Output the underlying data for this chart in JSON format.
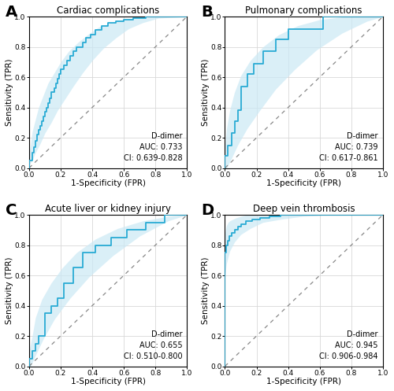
{
  "panels": [
    {
      "label": "A",
      "title": "Cardiac complications",
      "auc": "0.733",
      "ci": "0.639-0.828",
      "roc_fpr": [
        0.0,
        0.0,
        0.02,
        0.02,
        0.03,
        0.03,
        0.04,
        0.04,
        0.05,
        0.05,
        0.06,
        0.06,
        0.07,
        0.07,
        0.08,
        0.08,
        0.09,
        0.09,
        0.1,
        0.1,
        0.11,
        0.11,
        0.12,
        0.12,
        0.13,
        0.13,
        0.14,
        0.14,
        0.16,
        0.16,
        0.17,
        0.17,
        0.18,
        0.18,
        0.19,
        0.19,
        0.2,
        0.2,
        0.22,
        0.22,
        0.24,
        0.24,
        0.26,
        0.26,
        0.28,
        0.28,
        0.3,
        0.3,
        0.34,
        0.34,
        0.36,
        0.36,
        0.39,
        0.39,
        0.42,
        0.42,
        0.46,
        0.46,
        0.5,
        0.5,
        0.55,
        0.55,
        0.6,
        0.6,
        0.66,
        0.66,
        0.74,
        0.74,
        0.82,
        0.82,
        1.0
      ],
      "roc_tpr": [
        0.0,
        0.05,
        0.05,
        0.1,
        0.1,
        0.14,
        0.14,
        0.18,
        0.18,
        0.22,
        0.22,
        0.25,
        0.25,
        0.28,
        0.28,
        0.31,
        0.31,
        0.34,
        0.34,
        0.37,
        0.37,
        0.4,
        0.4,
        0.43,
        0.43,
        0.46,
        0.46,
        0.5,
        0.5,
        0.53,
        0.53,
        0.56,
        0.56,
        0.59,
        0.59,
        0.62,
        0.62,
        0.65,
        0.65,
        0.68,
        0.68,
        0.71,
        0.71,
        0.74,
        0.74,
        0.77,
        0.77,
        0.8,
        0.8,
        0.83,
        0.83,
        0.86,
        0.86,
        0.88,
        0.88,
        0.91,
        0.91,
        0.94,
        0.94,
        0.96,
        0.96,
        0.97,
        0.97,
        0.98,
        0.98,
        0.99,
        0.99,
        1.0,
        1.0,
        1.0,
        1.0
      ],
      "ci_lo_fpr": [
        0.0,
        0.0,
        0.02,
        0.04,
        0.07,
        0.1,
        0.14,
        0.18,
        0.23,
        0.28,
        0.34,
        0.4,
        0.47,
        0.55,
        0.63,
        0.72,
        0.82,
        1.0
      ],
      "ci_lo_tpr": [
        0.0,
        0.02,
        0.05,
        0.1,
        0.16,
        0.23,
        0.3,
        0.38,
        0.46,
        0.54,
        0.63,
        0.71,
        0.79,
        0.86,
        0.92,
        0.96,
        0.99,
        1.0
      ],
      "ci_hi_fpr": [
        0.0,
        0.0,
        0.01,
        0.02,
        0.04,
        0.06,
        0.09,
        0.12,
        0.16,
        0.2,
        0.25,
        0.31,
        0.37,
        0.44,
        0.52,
        0.6,
        0.69,
        0.79,
        1.0
      ],
      "ci_hi_tpr": [
        0.0,
        0.09,
        0.16,
        0.24,
        0.32,
        0.4,
        0.48,
        0.56,
        0.63,
        0.7,
        0.77,
        0.83,
        0.88,
        0.93,
        0.96,
        0.98,
        0.99,
        1.0,
        1.0
      ]
    },
    {
      "label": "B",
      "title": "Pulmonary complications",
      "auc": "0.739",
      "ci": "0.617-0.861",
      "roc_fpr": [
        0.0,
        0.0,
        0.02,
        0.02,
        0.04,
        0.04,
        0.06,
        0.06,
        0.08,
        0.08,
        0.1,
        0.1,
        0.14,
        0.14,
        0.18,
        0.18,
        0.24,
        0.24,
        0.32,
        0.32,
        0.4,
        0.4,
        0.5,
        0.5,
        0.62,
        0.62,
        0.76,
        0.76,
        1.0
      ],
      "roc_tpr": [
        0.0,
        0.08,
        0.08,
        0.15,
        0.15,
        0.23,
        0.23,
        0.31,
        0.31,
        0.38,
        0.38,
        0.54,
        0.54,
        0.62,
        0.62,
        0.69,
        0.69,
        0.77,
        0.77,
        0.85,
        0.85,
        0.92,
        0.92,
        0.92,
        0.92,
        1.0,
        1.0,
        1.0,
        1.0
      ],
      "ci_lo_fpr": [
        0.0,
        0.01,
        0.04,
        0.08,
        0.14,
        0.22,
        0.32,
        0.44,
        0.58,
        0.74,
        0.9,
        1.0
      ],
      "ci_lo_tpr": [
        0.0,
        0.0,
        0.06,
        0.15,
        0.26,
        0.38,
        0.52,
        0.65,
        0.78,
        0.89,
        0.97,
        1.0
      ],
      "ci_hi_fpr": [
        0.0,
        0.0,
        0.01,
        0.03,
        0.06,
        0.1,
        0.16,
        0.24,
        0.34,
        0.46,
        0.6,
        0.76,
        1.0
      ],
      "ci_hi_tpr": [
        0.0,
        0.16,
        0.26,
        0.38,
        0.5,
        0.61,
        0.71,
        0.8,
        0.88,
        0.94,
        0.98,
        1.0,
        1.0
      ]
    },
    {
      "label": "C",
      "title": "Acute liver or kidney injury",
      "auc": "0.655",
      "ci": "0.510-0.800",
      "roc_fpr": [
        0.0,
        0.0,
        0.02,
        0.02,
        0.04,
        0.04,
        0.06,
        0.06,
        0.1,
        0.1,
        0.14,
        0.14,
        0.18,
        0.18,
        0.22,
        0.22,
        0.28,
        0.28,
        0.34,
        0.34,
        0.42,
        0.42,
        0.52,
        0.52,
        0.62,
        0.62,
        0.74,
        0.74,
        0.86,
        0.86,
        1.0
      ],
      "roc_tpr": [
        0.0,
        0.05,
        0.05,
        0.1,
        0.1,
        0.15,
        0.15,
        0.2,
        0.2,
        0.35,
        0.35,
        0.4,
        0.4,
        0.45,
        0.45,
        0.55,
        0.55,
        0.65,
        0.65,
        0.75,
        0.75,
        0.8,
        0.8,
        0.85,
        0.85,
        0.9,
        0.9,
        0.95,
        0.95,
        1.0,
        1.0
      ],
      "ci_lo_fpr": [
        0.0,
        0.01,
        0.04,
        0.09,
        0.16,
        0.26,
        0.38,
        0.53,
        0.7,
        0.88,
        1.0
      ],
      "ci_lo_tpr": [
        0.0,
        0.0,
        0.07,
        0.18,
        0.31,
        0.45,
        0.59,
        0.73,
        0.86,
        0.96,
        1.0
      ],
      "ci_hi_fpr": [
        0.0,
        0.0,
        0.02,
        0.04,
        0.08,
        0.14,
        0.21,
        0.3,
        0.42,
        0.56,
        0.72,
        0.88,
        1.0
      ],
      "ci_hi_tpr": [
        0.0,
        0.1,
        0.2,
        0.32,
        0.44,
        0.55,
        0.65,
        0.75,
        0.84,
        0.91,
        0.96,
        0.99,
        1.0
      ]
    },
    {
      "label": "D",
      "title": "Deep vein thrombosis",
      "auc": "0.945",
      "ci": "0.906-0.984",
      "roc_fpr": [
        0.0,
        0.0,
        0.01,
        0.01,
        0.02,
        0.02,
        0.03,
        0.03,
        0.04,
        0.04,
        0.06,
        0.06,
        0.08,
        0.08,
        0.1,
        0.1,
        0.13,
        0.13,
        0.17,
        0.17,
        0.22,
        0.22,
        0.28,
        0.28,
        0.35,
        0.35,
        0.43,
        0.43,
        1.0
      ],
      "roc_tpr": [
        0.0,
        0.75,
        0.75,
        0.8,
        0.8,
        0.83,
        0.83,
        0.86,
        0.86,
        0.88,
        0.88,
        0.9,
        0.9,
        0.92,
        0.92,
        0.94,
        0.94,
        0.96,
        0.96,
        0.97,
        0.97,
        0.98,
        0.98,
        0.99,
        0.99,
        1.0,
        1.0,
        1.0,
        1.0
      ],
      "ci_lo_fpr": [
        0.0,
        0.0,
        0.01,
        0.03,
        0.06,
        0.1,
        0.16,
        0.24,
        0.35,
        0.49,
        0.65,
        0.83,
        1.0
      ],
      "ci_lo_tpr": [
        0.0,
        0.6,
        0.68,
        0.76,
        0.82,
        0.87,
        0.91,
        0.95,
        0.97,
        0.99,
        1.0,
        1.0,
        1.0
      ],
      "ci_hi_fpr": [
        0.0,
        0.0,
        0.005,
        0.01,
        0.02,
        0.03,
        0.05,
        0.07,
        0.1,
        0.14,
        0.19,
        1.0
      ],
      "ci_hi_tpr": [
        0.0,
        0.88,
        0.91,
        0.93,
        0.95,
        0.96,
        0.97,
        0.98,
        0.99,
        1.0,
        1.0,
        1.0
      ]
    }
  ],
  "line_color": "#29ABD4",
  "fill_color": "#CBE9F5",
  "fill_alpha": 0.7,
  "diag_color": "#888888",
  "background_color": "#ffffff",
  "grid_color": "#d8d8d8",
  "label_fontsize": 14,
  "title_fontsize": 8.5,
  "tick_fontsize": 6.5,
  "annot_fontsize": 7.0,
  "axis_label_fontsize": 7.5
}
